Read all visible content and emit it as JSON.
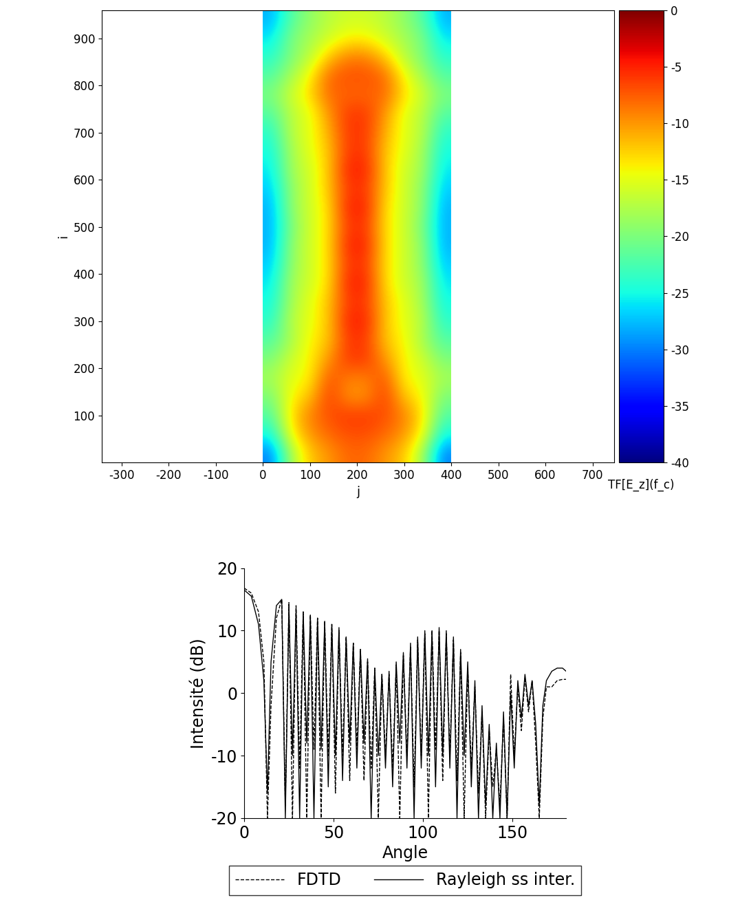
{
  "chart_data": [
    {
      "type": "heatmap",
      "x_label": "j",
      "y_label": "i",
      "xlim": [
        -342,
        746
      ],
      "ylim": [
        0,
        960
      ],
      "xticks": [
        -300,
        -200,
        -100,
        0,
        100,
        200,
        300,
        400,
        500,
        600,
        700
      ],
      "yticks": [
        100,
        200,
        300,
        400,
        500,
        600,
        700,
        800,
        900
      ],
      "j_range": [
        0,
        400
      ],
      "i_range": [
        0,
        960
      ],
      "colorbar_label": "TF[E_z](f_c)",
      "colorbar_range": [
        -40,
        0
      ],
      "colorbar_ticks": [
        0,
        -5,
        -10,
        -15,
        -20,
        -25,
        -30,
        -35,
        -40
      ],
      "cells": [
        [
          -30,
          -18,
          -12,
          -10,
          -8,
          -8,
          -10,
          -12,
          -18,
          -30
        ],
        [
          -25,
          -14,
          -10,
          -8,
          -7,
          -7,
          -8,
          -10,
          -14,
          -25
        ],
        [
          -22,
          -13,
          -9,
          -7,
          -6,
          -6,
          -7,
          -9,
          -13,
          -22
        ],
        [
          -20,
          -14,
          -12,
          -6,
          -10,
          -10,
          -6,
          -12,
          -14,
          -20
        ],
        [
          -18,
          -15,
          -14,
          -7,
          -9,
          -9,
          -7,
          -14,
          -15,
          -18
        ],
        [
          -20,
          -16,
          -14,
          -10,
          -6,
          -6,
          -10,
          -14,
          -16,
          -20
        ],
        [
          -22,
          -18,
          -14,
          -12,
          -6,
          -6,
          -12,
          -14,
          -18,
          -22
        ],
        [
          -24,
          -17,
          -15,
          -12,
          -5,
          -5,
          -12,
          -15,
          -17,
          -24
        ],
        [
          -25,
          -18,
          -15,
          -12,
          -6,
          -6,
          -12,
          -15,
          -18,
          -25
        ],
        [
          -26,
          -18,
          -16,
          -13,
          -5,
          -5,
          -13,
          -16,
          -18,
          -26
        ],
        [
          -27,
          -19,
          -16,
          -13,
          -6,
          -6,
          -13,
          -16,
          -19,
          -27
        ],
        [
          -28,
          -19,
          -16,
          -13,
          -5,
          -5,
          -13,
          -16,
          -19,
          -28
        ],
        [
          -28,
          -20,
          -16,
          -13,
          -6,
          -6,
          -13,
          -16,
          -20,
          -28
        ],
        [
          -28,
          -19,
          -16,
          -13,
          -5,
          -5,
          -13,
          -16,
          -19,
          -28
        ],
        [
          -27,
          -19,
          -16,
          -12,
          -6,
          -6,
          -12,
          -16,
          -19,
          -27
        ],
        [
          -26,
          -18,
          -16,
          -12,
          -5,
          -5,
          -12,
          -16,
          -18,
          -26
        ],
        [
          -25,
          -18,
          -15,
          -12,
          -6,
          -6,
          -12,
          -15,
          -18,
          -25
        ],
        [
          -24,
          -17,
          -15,
          -11,
          -6,
          -6,
          -11,
          -15,
          -17,
          -24
        ],
        [
          -22,
          -17,
          -15,
          -10,
          -6,
          -6,
          -10,
          -15,
          -17,
          -22
        ],
        [
          -20,
          -16,
          -13,
          -8,
          -8,
          -8,
          -8,
          -13,
          -16,
          -20
        ],
        [
          -22,
          -18,
          -14,
          -8,
          -7,
          -7,
          -8,
          -14,
          -18,
          -22
        ],
        [
          -24,
          -20,
          -17,
          -12,
          -9,
          -9,
          -12,
          -17,
          -20,
          -24
        ],
        [
          -26,
          -20,
          -18,
          -16,
          -14,
          -14,
          -16,
          -18,
          -20,
          -26
        ],
        [
          -28,
          -22,
          -19,
          -17,
          -16,
          -16,
          -17,
          -19,
          -22,
          -28
        ]
      ]
    },
    {
      "type": "line",
      "x_label": "Angle",
      "y_label": "Intensité (dB)",
      "xlim": [
        0,
        180
      ],
      "ylim": [
        -20,
        20
      ],
      "xticks": [
        0,
        50,
        100,
        150
      ],
      "yticks": [
        -20,
        -10,
        0,
        10,
        20
      ],
      "legend": "lower center",
      "x": [
        0,
        4,
        8,
        11,
        13,
        15,
        18,
        21,
        23,
        25,
        27,
        29,
        31,
        33,
        35,
        37,
        39,
        41,
        43,
        45,
        47,
        49,
        51,
        53,
        55,
        57,
        59,
        61,
        63,
        65,
        67,
        69,
        71,
        73,
        75,
        77,
        79,
        81,
        83,
        85,
        87,
        89,
        91,
        93,
        95,
        97,
        99,
        101,
        103,
        105,
        107,
        109,
        111,
        113,
        115,
        117,
        119,
        121,
        123,
        125,
        127,
        129,
        131,
        133,
        135,
        137,
        139,
        141,
        143,
        145,
        147,
        149,
        151,
        153,
        155,
        157,
        159,
        161,
        163,
        165,
        167,
        169,
        172,
        175,
        178,
        180
      ],
      "series": [
        {
          "name": "FDTD",
          "color": "#000000",
          "line_style": "dashed",
          "values": [
            16.8,
            16,
            13,
            5,
            -20,
            -2,
            12,
            15,
            -18,
            14.5,
            -20,
            14,
            -12,
            13,
            -20,
            12.5,
            -9,
            12,
            -20,
            11.5,
            -10,
            11,
            -16,
            10,
            -10,
            9,
            -14,
            8,
            -9,
            7,
            -14,
            5,
            -12,
            4,
            -20,
            3,
            -10,
            3,
            -12,
            4.5,
            -20,
            6,
            -10,
            7.5,
            -15,
            8.5,
            -10,
            9.5,
            -20,
            10,
            -9,
            10,
            -14,
            9.5,
            -10,
            8.5,
            -14,
            6.5,
            -20,
            4,
            -12,
            1,
            -16,
            -3,
            -20,
            -6,
            -15,
            -9,
            -18,
            -4,
            -20,
            3,
            -10,
            1,
            -6,
            2.5,
            -3,
            2,
            -8,
            -20,
            -4,
            1,
            1,
            2,
            2.2,
            2.2
          ]
        },
        {
          "name": "Rayleigh ss inter.",
          "color": "#000000",
          "line_style": "solid",
          "values": [
            16.5,
            15.5,
            11,
            2,
            -16,
            5,
            14,
            15,
            -20,
            14,
            -10,
            13.5,
            -20,
            13,
            -8,
            12.5,
            -20,
            12,
            -9,
            11.5,
            -15,
            11,
            -10,
            10.5,
            -14,
            9,
            -8,
            8,
            -12,
            7,
            -8,
            5.5,
            -20,
            4,
            -10,
            3,
            -12,
            3.5,
            -15,
            5,
            -8,
            6.5,
            -12,
            8,
            -20,
            9,
            -12,
            10,
            -10,
            10,
            -15,
            10.5,
            -10,
            10,
            -12,
            9,
            -20,
            7,
            -10,
            5,
            -15,
            2,
            -20,
            -2,
            -18,
            -5,
            -20,
            -8,
            -20,
            -3,
            -20,
            0,
            -12,
            2,
            -4,
            3,
            -2,
            2,
            -5,
            -18,
            -2,
            2,
            3.5,
            4,
            4,
            3.5
          ]
        }
      ]
    }
  ]
}
